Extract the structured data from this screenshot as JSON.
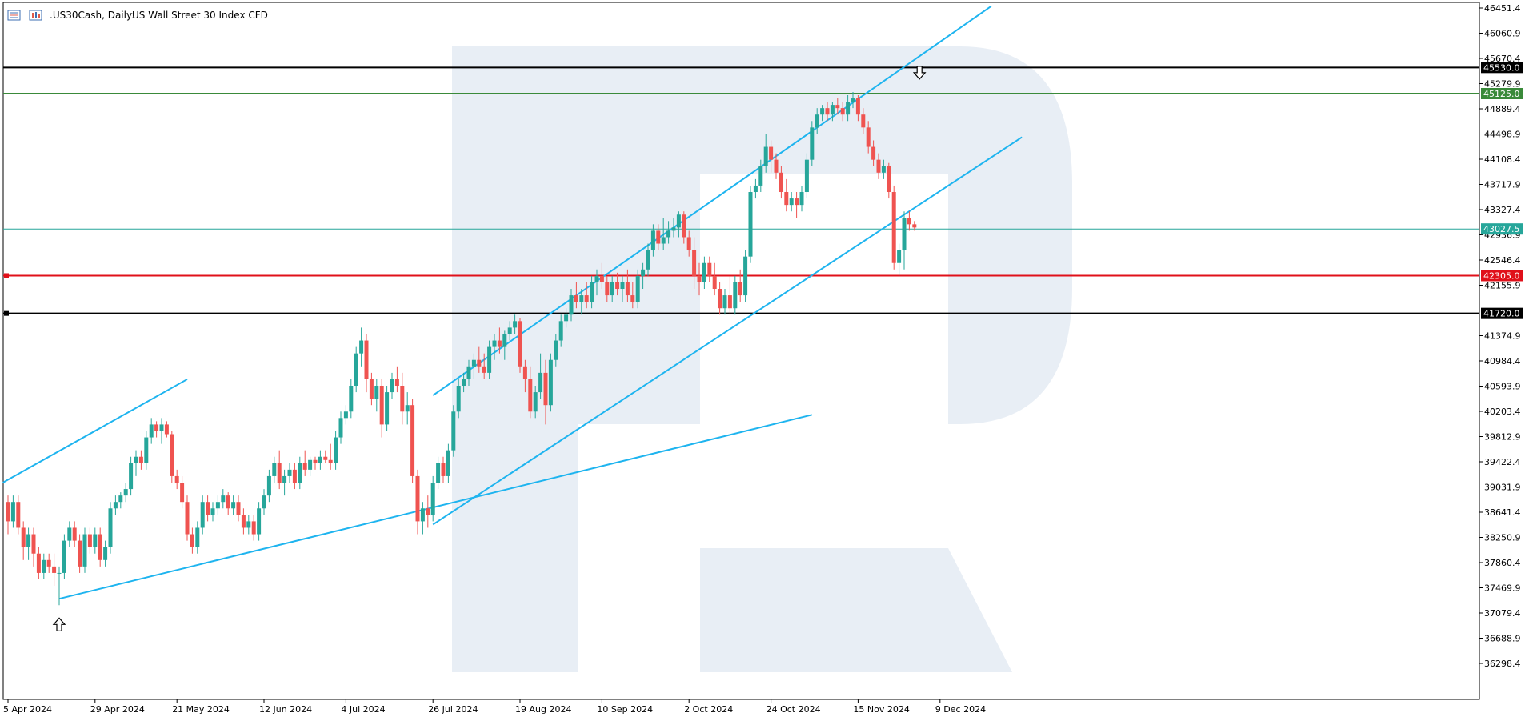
{
  "header": {
    "symbol": ".US30Cash, Daily:",
    "description": "US Wall Street 30 Index CFD"
  },
  "colors": {
    "bull": "#26a69a",
    "bear": "#ef5350",
    "trendline": "#1eb4ef",
    "resistance_black": "#000000",
    "resistance_green": "#3a8a3a",
    "support_red": "#e0101a",
    "current_price": "#26a69a",
    "watermark": "#e8eef5"
  },
  "chart_data": {
    "type": "candlestick",
    "title": "",
    "ylim": [
      36100,
      46451.4
    ],
    "y_ticks": [
      "36298.4",
      "36688.9",
      "37079.4",
      "37469.9",
      "37860.4",
      "38250.9",
      "38641.4",
      "39031.9",
      "39422.4",
      "39812.9",
      "40203.4",
      "40593.9",
      "40984.4",
      "41374.9",
      "42155.9",
      "42546.4",
      "42936.9",
      "43327.4",
      "43717.9",
      "44108.4",
      "44498.9",
      "44889.4",
      "45279.9",
      "45670.4",
      "46060.9",
      "46451.4"
    ],
    "x_ticks": [
      "5 Apr 2024",
      "29 Apr 2024",
      "21 May 2024",
      "12 Jun 2024",
      "4 Jul 2024",
      "26 Jul 2024",
      "19 Aug 2024",
      "10 Sep 2024",
      "2 Oct 2024",
      "24 Oct 2024",
      "15 Nov 2024",
      "9 Dec 2024"
    ],
    "x_tick_bar_index": [
      0,
      17,
      33,
      50,
      66,
      83,
      100,
      116,
      133,
      149,
      166,
      182
    ],
    "levels": [
      {
        "value": 45530.0,
        "label": "45530.0",
        "color": "black"
      },
      {
        "value": 45125.0,
        "label": "45125.0",
        "color": "green"
      },
      {
        "value": 43027.5,
        "label": "43027.5",
        "color": "teal"
      },
      {
        "value": 42305.0,
        "label": "42305.0",
        "color": "red"
      },
      {
        "value": 41720.0,
        "label": "41720.0",
        "color": "black"
      }
    ],
    "channels": [
      {
        "name": "",
        "points": [
          [
            -1,
            39100
          ],
          [
            35,
            40700
          ]
        ]
      },
      {
        "name": "",
        "points": [
          [
            10,
            37300
          ],
          [
            157,
            40150
          ]
        ]
      },
      {
        "name": "",
        "points": [
          [
            83,
            38450
          ],
          [
            198,
            44450
          ]
        ]
      },
      {
        "name": "",
        "points": [
          [
            83,
            40450
          ],
          [
            192,
            46480
          ]
        ]
      }
    ],
    "arrows": [
      {
        "direction": "up",
        "bar": 10,
        "price": 37100
      },
      {
        "direction": "down",
        "bar": 178,
        "price": 45300
      }
    ],
    "candles": [
      [
        38800,
        38900,
        38300,
        38500
      ],
      [
        38500,
        38900,
        38400,
        38800
      ],
      [
        38800,
        38900,
        38300,
        38400
      ],
      [
        38400,
        38500,
        37900,
        38100
      ],
      [
        38100,
        38400,
        37900,
        38300
      ],
      [
        38300,
        38400,
        37800,
        38000
      ],
      [
        38000,
        38100,
        37600,
        37700
      ],
      [
        37700,
        38000,
        37600,
        37900
      ],
      [
        37900,
        38000,
        37700,
        37800
      ],
      [
        37800,
        38000,
        37500,
        37700
      ],
      [
        37700,
        37800,
        37200,
        37700
      ],
      [
        37700,
        38300,
        37600,
        38200
      ],
      [
        38200,
        38500,
        38100,
        38400
      ],
      [
        38400,
        38500,
        38100,
        38200
      ],
      [
        38200,
        38300,
        37700,
        37800
      ],
      [
        37800,
        38400,
        37700,
        38300
      ],
      [
        38300,
        38400,
        38000,
        38100
      ],
      [
        38100,
        38400,
        38000,
        38300
      ],
      [
        38300,
        38400,
        37800,
        37900
      ],
      [
        37900,
        38200,
        37800,
        38100
      ],
      [
        38100,
        38800,
        38000,
        38700
      ],
      [
        38700,
        38900,
        38600,
        38800
      ],
      [
        38800,
        38950,
        38700,
        38900
      ],
      [
        38900,
        39100,
        38800,
        39000
      ],
      [
        39000,
        39500,
        38900,
        39400
      ],
      [
        39400,
        39600,
        39200,
        39500
      ],
      [
        39500,
        39600,
        39300,
        39400
      ],
      [
        39400,
        39900,
        39300,
        39800
      ],
      [
        39800,
        40100,
        39700,
        40000
      ],
      [
        40000,
        40050,
        39800,
        39900
      ],
      [
        39900,
        40100,
        39700,
        40000
      ],
      [
        40000,
        40050,
        39800,
        39850
      ],
      [
        39850,
        39900,
        39100,
        39200
      ],
      [
        39200,
        39300,
        39000,
        39100
      ],
      [
        39100,
        39200,
        38700,
        38800
      ],
      [
        38800,
        38900,
        38200,
        38300
      ],
      [
        38300,
        38400,
        38000,
        38100
      ],
      [
        38100,
        38500,
        38000,
        38400
      ],
      [
        38400,
        38900,
        38300,
        38800
      ],
      [
        38800,
        38900,
        38500,
        38600
      ],
      [
        38600,
        38800,
        38500,
        38700
      ],
      [
        38700,
        38900,
        38600,
        38800
      ],
      [
        38800,
        39000,
        38700,
        38900
      ],
      [
        38900,
        38950,
        38600,
        38700
      ],
      [
        38700,
        38900,
        38600,
        38800
      ],
      [
        38800,
        38900,
        38500,
        38600
      ],
      [
        38600,
        38700,
        38300,
        38400
      ],
      [
        38400,
        38600,
        38300,
        38500
      ],
      [
        38500,
        38600,
        38200,
        38300
      ],
      [
        38300,
        38800,
        38200,
        38700
      ],
      [
        38700,
        39000,
        38600,
        38900
      ],
      [
        38900,
        39300,
        38800,
        39200
      ],
      [
        39200,
        39500,
        39100,
        39400
      ],
      [
        39400,
        39600,
        39000,
        39100
      ],
      [
        39100,
        39300,
        38900,
        39200
      ],
      [
        39200,
        39400,
        39100,
        39300
      ],
      [
        39300,
        39400,
        39000,
        39100
      ],
      [
        39100,
        39500,
        39000,
        39400
      ],
      [
        39400,
        39600,
        39200,
        39300
      ],
      [
        39300,
        39500,
        39200,
        39450
      ],
      [
        39450,
        39500,
        39300,
        39400
      ],
      [
        39400,
        39600,
        39300,
        39500
      ],
      [
        39500,
        39600,
        39400,
        39450
      ],
      [
        39450,
        39700,
        39300,
        39400
      ],
      [
        39400,
        39900,
        39300,
        39800
      ],
      [
        39800,
        40200,
        39700,
        40100
      ],
      [
        40100,
        40300,
        40000,
        40200
      ],
      [
        40200,
        40700,
        40100,
        40600
      ],
      [
        40600,
        41200,
        40500,
        41100
      ],
      [
        41100,
        41500,
        40900,
        41300
      ],
      [
        41300,
        41400,
        40500,
        40700
      ],
      [
        40700,
        40800,
        40300,
        40400
      ],
      [
        40400,
        40700,
        40200,
        40600
      ],
      [
        40600,
        40700,
        39800,
        40000
      ],
      [
        40000,
        40600,
        39900,
        40500
      ],
      [
        40500,
        40800,
        40400,
        40700
      ],
      [
        40700,
        40900,
        40500,
        40600
      ],
      [
        40600,
        40800,
        40000,
        40200
      ],
      [
        40200,
        40500,
        40000,
        40300
      ],
      [
        40300,
        40400,
        39100,
        39200
      ],
      [
        39200,
        39300,
        38300,
        38500
      ],
      [
        38500,
        38800,
        38300,
        38700
      ],
      [
        38700,
        38900,
        38400,
        38600
      ],
      [
        38600,
        39200,
        38500,
        39100
      ],
      [
        39100,
        39500,
        39000,
        39400
      ],
      [
        39400,
        39500,
        39100,
        39200
      ],
      [
        39200,
        39700,
        39100,
        39600
      ],
      [
        39600,
        40300,
        39500,
        40200
      ],
      [
        40200,
        40700,
        40100,
        40600
      ],
      [
        40600,
        40800,
        40500,
        40700
      ],
      [
        40700,
        41000,
        40600,
        40900
      ],
      [
        40900,
        41100,
        40700,
        41000
      ],
      [
        41000,
        41200,
        40800,
        40900
      ],
      [
        40900,
        41100,
        40700,
        40800
      ],
      [
        40800,
        41300,
        40700,
        41200
      ],
      [
        41200,
        41400,
        41000,
        41300
      ],
      [
        41300,
        41500,
        41100,
        41200
      ],
      [
        41200,
        41450,
        41000,
        41400
      ],
      [
        41400,
        41600,
        41300,
        41500
      ],
      [
        41500,
        41700,
        41400,
        41600
      ],
      [
        41600,
        41650,
        40800,
        40900
      ],
      [
        40900,
        41000,
        40500,
        40700
      ],
      [
        40700,
        40900,
        40100,
        40200
      ],
      [
        40200,
        40600,
        40100,
        40500
      ],
      [
        40500,
        41100,
        40400,
        40800
      ],
      [
        40800,
        41000,
        40000,
        40300
      ],
      [
        40300,
        41100,
        40200,
        41000
      ],
      [
        41000,
        41400,
        40900,
        41300
      ],
      [
        41300,
        41700,
        41200,
        41600
      ],
      [
        41600,
        41800,
        41500,
        41700
      ],
      [
        41700,
        42100,
        41600,
        42000
      ],
      [
        42000,
        42200,
        41800,
        41900
      ],
      [
        41900,
        42100,
        41700,
        42000
      ],
      [
        42000,
        42200,
        41800,
        41900
      ],
      [
        41900,
        42300,
        41800,
        42200
      ],
      [
        42200,
        42400,
        42000,
        42300
      ],
      [
        42300,
        42500,
        42100,
        42200
      ],
      [
        42200,
        42300,
        41900,
        42000
      ],
      [
        42000,
        42300,
        41900,
        42200
      ],
      [
        42200,
        42350,
        42000,
        42100
      ],
      [
        42100,
        42300,
        41900,
        42200
      ],
      [
        42200,
        42400,
        41900,
        42000
      ],
      [
        42000,
        42200,
        41800,
        41900
      ],
      [
        41900,
        42400,
        41800,
        42300
      ],
      [
        42300,
        42500,
        42100,
        42400
      ],
      [
        42400,
        42800,
        42300,
        42700
      ],
      [
        42700,
        43100,
        42600,
        43000
      ],
      [
        43000,
        43100,
        42700,
        42800
      ],
      [
        42800,
        43200,
        42700,
        42900
      ],
      [
        42900,
        43150,
        42800,
        43000
      ],
      [
        43000,
        43200,
        42900,
        43050
      ],
      [
        43050,
        43300,
        42900,
        43250
      ],
      [
        43250,
        43300,
        42800,
        42900
      ],
      [
        42900,
        43000,
        42600,
        42700
      ],
      [
        42700,
        42900,
        42100,
        42300
      ],
      [
        42300,
        42500,
        42000,
        42200
      ],
      [
        42200,
        42600,
        42100,
        42500
      ],
      [
        42500,
        42600,
        42200,
        42300
      ],
      [
        42300,
        42500,
        42000,
        42100
      ],
      [
        42100,
        42200,
        41700,
        41800
      ],
      [
        41800,
        42100,
        41700,
        42000
      ],
      [
        42000,
        42300,
        41700,
        41800
      ],
      [
        41800,
        42300,
        41700,
        42200
      ],
      [
        42200,
        42400,
        41900,
        42000
      ],
      [
        42000,
        42700,
        41900,
        42600
      ],
      [
        42600,
        43700,
        42500,
        43600
      ],
      [
        43600,
        43800,
        43500,
        43700
      ],
      [
        43700,
        44100,
        43600,
        44000
      ],
      [
        44000,
        44500,
        43900,
        44300
      ],
      [
        44300,
        44400,
        43900,
        44100
      ],
      [
        44100,
        44200,
        43800,
        43900
      ],
      [
        43900,
        44000,
        43500,
        43600
      ],
      [
        43600,
        43800,
        43300,
        43400
      ],
      [
        43400,
        43600,
        43300,
        43500
      ],
      [
        43500,
        43600,
        43200,
        43400
      ],
      [
        43400,
        43700,
        43300,
        43600
      ],
      [
        43600,
        44200,
        43500,
        44100
      ],
      [
        44100,
        44700,
        44000,
        44600
      ],
      [
        44600,
        44900,
        44500,
        44800
      ],
      [
        44800,
        44950,
        44700,
        44900
      ],
      [
        44900,
        45000,
        44700,
        44800
      ],
      [
        44800,
        45000,
        44700,
        44950
      ],
      [
        44950,
        45050,
        44800,
        44900
      ],
      [
        44900,
        45000,
        44700,
        44800
      ],
      [
        44800,
        45100,
        44700,
        45000
      ],
      [
        45000,
        45150,
        44900,
        45050
      ],
      [
        45050,
        45100,
        44700,
        44800
      ],
      [
        44800,
        44900,
        44500,
        44600
      ],
      [
        44600,
        44700,
        44200,
        44300
      ],
      [
        44300,
        44400,
        44000,
        44100
      ],
      [
        44100,
        44200,
        43800,
        43900
      ],
      [
        43900,
        44100,
        43800,
        44000
      ],
      [
        44000,
        44050,
        43500,
        43600
      ],
      [
        43600,
        43700,
        42400,
        42500
      ],
      [
        42500,
        42800,
        42300,
        42700
      ],
      [
        42700,
        43300,
        42400,
        43200
      ],
      [
        43200,
        43300,
        43000,
        43100
      ],
      [
        43100,
        43150,
        43000,
        43050
      ]
    ]
  }
}
